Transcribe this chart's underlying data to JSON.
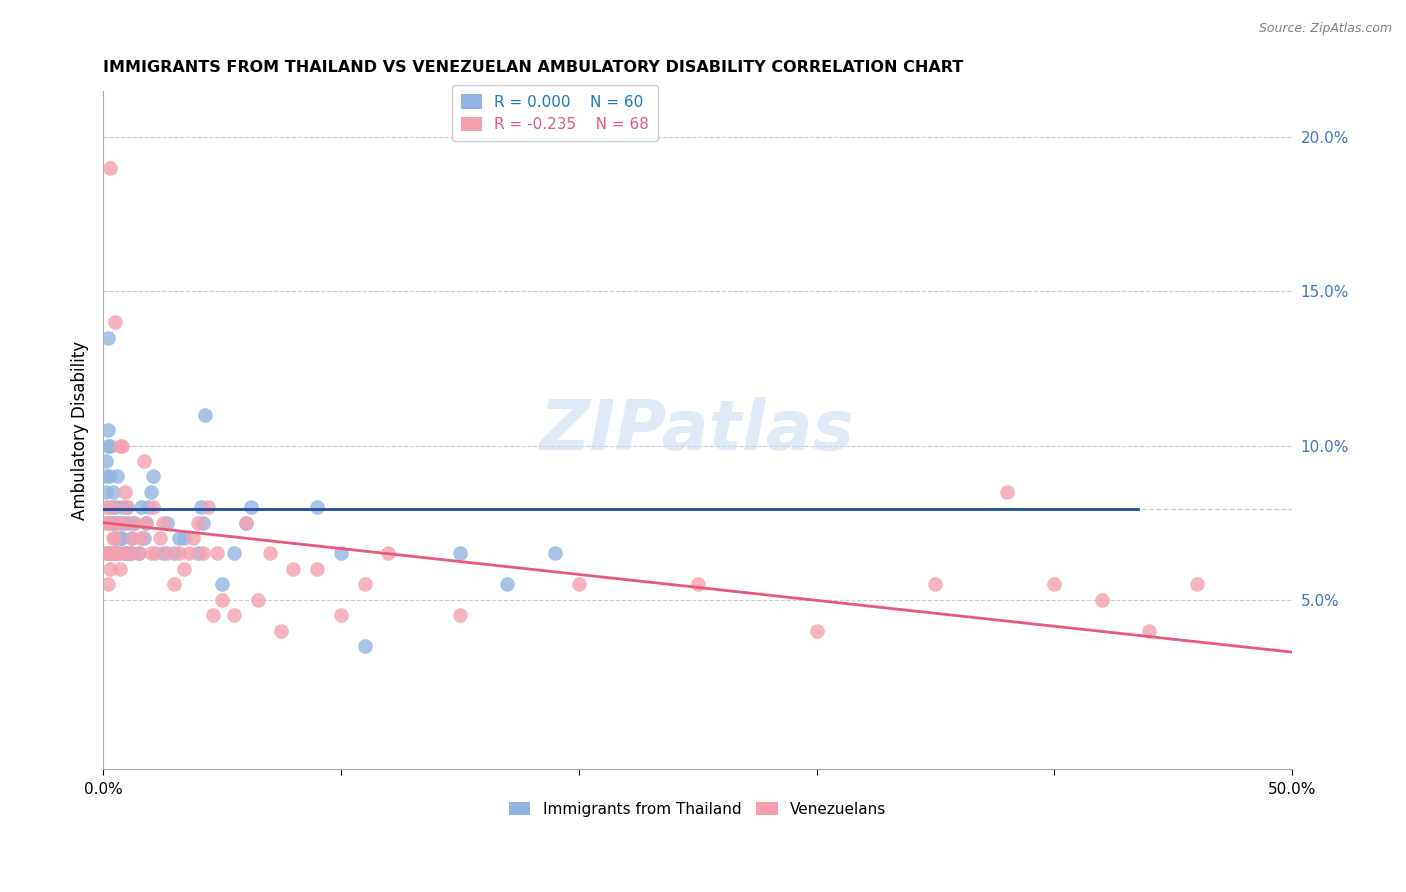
{
  "title": "IMMIGRANTS FROM THAILAND VS VENEZUELAN AMBULATORY DISABILITY CORRELATION CHART",
  "source": "Source: ZipAtlas.com",
  "ylabel": "Ambulatory Disability",
  "xlim": [
    0.0,
    0.5
  ],
  "ylim": [
    -0.005,
    0.215
  ],
  "legend_r_blue": "R = 0.000",
  "legend_n_blue": "N = 60",
  "legend_r_pink": "R = -0.235",
  "legend_n_pink": "N = 68",
  "legend_label_blue": "Immigrants from Thailand",
  "legend_label_pink": "Venezuelans",
  "blue_color": "#92B4E3",
  "pink_color": "#F4A0B0",
  "blue_line_color": "#1C4F9C",
  "pink_line_color": "#E8587A",
  "blue_r_color": "#1C7AC2",
  "pink_r_color": "#E8587A",
  "blue_n_color": "#1C7AC2",
  "pink_n_color": "#E8587A",
  "right_tick_color": "#4472C4",
  "watermark": "ZIPatlas",
  "grid_color": "#CCCCCC",
  "dashed_line_y": 0.0795,
  "blue_line_y": 0.0795,
  "blue_line_x_start": 0.0,
  "blue_line_x_end": 0.435,
  "pink_line_x_start": 0.0,
  "pink_line_y_start": 0.075,
  "pink_line_x_end": 0.5,
  "pink_line_y_end": 0.033,
  "blue_x": [
    0.001,
    0.001,
    0.001,
    0.002,
    0.002,
    0.002,
    0.002,
    0.003,
    0.003,
    0.003,
    0.003,
    0.004,
    0.004,
    0.004,
    0.005,
    0.005,
    0.005,
    0.005,
    0.006,
    0.006,
    0.007,
    0.007,
    0.007,
    0.008,
    0.008,
    0.009,
    0.009,
    0.01,
    0.01,
    0.011,
    0.011,
    0.012,
    0.012,
    0.013,
    0.015,
    0.016,
    0.017,
    0.018,
    0.019,
    0.02,
    0.021,
    0.025,
    0.027,
    0.03,
    0.032,
    0.034,
    0.04,
    0.041,
    0.042,
    0.043,
    0.05,
    0.055,
    0.06,
    0.062,
    0.09,
    0.1,
    0.11,
    0.15,
    0.17,
    0.19
  ],
  "blue_y": [
    0.085,
    0.09,
    0.095,
    0.065,
    0.1,
    0.105,
    0.135,
    0.075,
    0.08,
    0.09,
    0.1,
    0.065,
    0.075,
    0.085,
    0.065,
    0.07,
    0.075,
    0.08,
    0.065,
    0.09,
    0.065,
    0.07,
    0.075,
    0.07,
    0.08,
    0.065,
    0.075,
    0.065,
    0.08,
    0.065,
    0.075,
    0.065,
    0.07,
    0.075,
    0.065,
    0.08,
    0.07,
    0.075,
    0.08,
    0.085,
    0.09,
    0.065,
    0.075,
    0.065,
    0.07,
    0.07,
    0.065,
    0.08,
    0.075,
    0.11,
    0.055,
    0.065,
    0.075,
    0.08,
    0.08,
    0.065,
    0.035,
    0.065,
    0.055,
    0.065
  ],
  "pink_x": [
    0.001,
    0.001,
    0.001,
    0.002,
    0.002,
    0.002,
    0.003,
    0.003,
    0.003,
    0.004,
    0.004,
    0.004,
    0.005,
    0.005,
    0.005,
    0.006,
    0.006,
    0.007,
    0.007,
    0.008,
    0.008,
    0.009,
    0.009,
    0.01,
    0.011,
    0.012,
    0.013,
    0.015,
    0.016,
    0.017,
    0.018,
    0.02,
    0.021,
    0.022,
    0.024,
    0.025,
    0.027,
    0.03,
    0.032,
    0.034,
    0.036,
    0.038,
    0.04,
    0.042,
    0.044,
    0.046,
    0.048,
    0.05,
    0.055,
    0.06,
    0.065,
    0.07,
    0.075,
    0.08,
    0.09,
    0.1,
    0.11,
    0.12,
    0.15,
    0.2,
    0.25,
    0.3,
    0.35,
    0.38,
    0.4,
    0.42,
    0.44,
    0.46
  ],
  "pink_y": [
    0.065,
    0.075,
    0.08,
    0.055,
    0.065,
    0.075,
    0.06,
    0.065,
    0.19,
    0.065,
    0.07,
    0.08,
    0.065,
    0.07,
    0.14,
    0.065,
    0.075,
    0.06,
    0.1,
    0.075,
    0.1,
    0.065,
    0.085,
    0.08,
    0.065,
    0.07,
    0.075,
    0.065,
    0.07,
    0.095,
    0.075,
    0.065,
    0.08,
    0.065,
    0.07,
    0.075,
    0.065,
    0.055,
    0.065,
    0.06,
    0.065,
    0.07,
    0.075,
    0.065,
    0.08,
    0.045,
    0.065,
    0.05,
    0.045,
    0.075,
    0.05,
    0.065,
    0.04,
    0.06,
    0.06,
    0.045,
    0.055,
    0.065,
    0.045,
    0.055,
    0.055,
    0.04,
    0.055,
    0.085,
    0.055,
    0.05,
    0.04,
    0.055
  ]
}
